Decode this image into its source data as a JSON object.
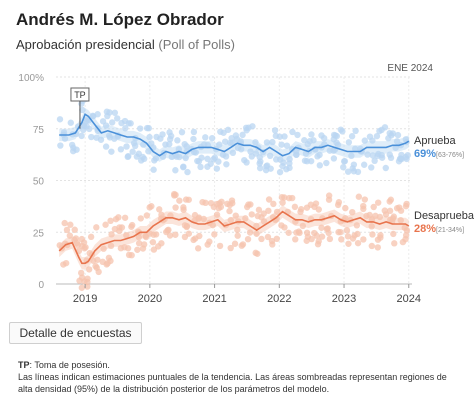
{
  "header": {
    "title": "Andrés M. López Obrador",
    "subtitle": "Aprobación presidencial",
    "subtitle_paren": "(Poll of Polls)"
  },
  "button": {
    "label": "Detalle de encuestas"
  },
  "notes": {
    "tp_key": "TP",
    "tp_text": ": Toma de posesión.",
    "line2": "Las líneas indican estimaciones puntuales de la tendencia. Las áreas sombreadas representan regiones de alta densidad (95%) de la distribución posterior de los parámetros del modelo."
  },
  "chart_data": {
    "type": "line",
    "date_label": "ENE 2024",
    "marker_label": "TP",
    "y_ticks": [
      "100%",
      "75",
      "50",
      "25",
      "0"
    ],
    "x_ticks": [
      "2019",
      "2020",
      "2021",
      "2022",
      "2023",
      "2024"
    ],
    "ylim": [
      0,
      100
    ],
    "xlim": [
      2018.55,
      2024.05
    ],
    "colors": {
      "approve": "#4a90d9",
      "approve_points": "#b9d6f2",
      "disapprove": "#e8744d",
      "disapprove_points": "#f6c3ad"
    },
    "series": [
      {
        "name": "Aprueba",
        "value_label": "69%",
        "range_label": "[63-76%]",
        "x": [
          2018.6,
          2018.75,
          2018.85,
          2018.95,
          2019.0,
          2019.05,
          2019.15,
          2019.25,
          2019.35,
          2019.45,
          2019.55,
          2019.65,
          2019.75,
          2019.85,
          2019.95,
          2020.05,
          2020.15,
          2020.25,
          2020.35,
          2020.45,
          2020.55,
          2020.65,
          2020.75,
          2020.85,
          2020.95,
          2021.05,
          2021.15,
          2021.25,
          2021.35,
          2021.45,
          2021.55,
          2021.65,
          2021.75,
          2021.85,
          2021.95,
          2022.05,
          2022.15,
          2022.25,
          2022.35,
          2022.45,
          2022.55,
          2022.65,
          2022.75,
          2022.85,
          2022.95,
          2023.05,
          2023.15,
          2023.25,
          2023.35,
          2023.45,
          2023.55,
          2023.65,
          2023.75,
          2023.85,
          2023.95,
          2024.0
        ],
        "values": [
          72,
          72,
          73,
          78,
          82,
          81,
          77,
          73,
          74,
          73,
          72,
          71,
          71,
          70,
          68,
          64,
          62,
          64,
          63,
          64,
          63,
          65,
          66,
          66,
          66,
          65,
          64,
          66,
          68,
          67,
          67,
          66,
          64,
          66,
          64,
          62,
          63,
          66,
          65,
          64,
          66,
          66,
          67,
          66,
          65,
          64,
          64,
          64,
          66,
          66,
          66,
          66,
          67,
          67,
          68,
          69
        ]
      },
      {
        "name": "Desaprueba",
        "value_label": "28%",
        "range_label": "[21-34%]",
        "x": [
          2018.6,
          2018.7,
          2018.8,
          2018.9,
          2018.95,
          2019.0,
          2019.05,
          2019.15,
          2019.25,
          2019.35,
          2019.45,
          2019.55,
          2019.65,
          2019.75,
          2019.85,
          2019.95,
          2020.05,
          2020.15,
          2020.25,
          2020.35,
          2020.45,
          2020.55,
          2020.65,
          2020.75,
          2020.85,
          2020.95,
          2021.05,
          2021.15,
          2021.25,
          2021.35,
          2021.45,
          2021.55,
          2021.65,
          2021.75,
          2021.85,
          2021.95,
          2022.05,
          2022.15,
          2022.25,
          2022.35,
          2022.45,
          2022.55,
          2022.65,
          2022.75,
          2022.85,
          2022.95,
          2023.05,
          2023.15,
          2023.25,
          2023.35,
          2023.45,
          2023.55,
          2023.65,
          2023.75,
          2023.85,
          2023.95,
          2024.0
        ],
        "values": [
          16,
          19,
          20,
          13,
          10,
          10,
          11,
          16,
          19,
          20,
          21,
          21,
          22,
          23,
          25,
          25,
          28,
          30,
          32,
          32,
          31,
          32,
          30,
          29,
          29,
          30,
          31,
          28,
          29,
          30,
          30,
          28,
          26,
          28,
          30,
          32,
          35,
          33,
          31,
          31,
          30,
          31,
          31,
          32,
          33,
          31,
          30,
          31,
          32,
          30,
          30,
          29,
          30,
          29,
          29,
          29,
          28
        ]
      }
    ],
    "annotations": [
      "Aprueba",
      "Desaprueba"
    ]
  }
}
